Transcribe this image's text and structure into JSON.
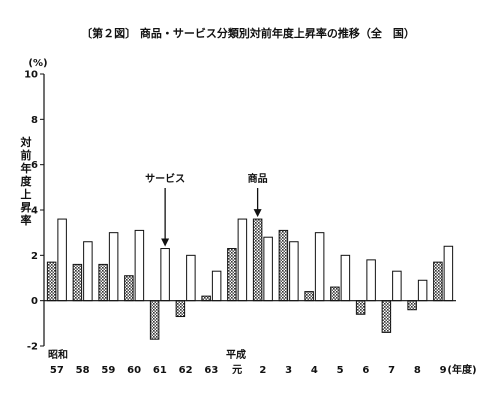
{
  "chart_data": {
    "type": "bar",
    "title": "〔第２図〕 商品・サービス分類別対前年度上昇率の推移（全　国）",
    "y_unit": "(%)",
    "ylabel": "対前年度上昇率",
    "ylim": [
      -2,
      10
    ],
    "yticks": [
      "-2",
      "0",
      "2",
      "4",
      "6",
      "8",
      "10"
    ],
    "era_labels": [
      "昭和",
      "平成"
    ],
    "x_unit": "(年度)",
    "categories": [
      "57",
      "58",
      "59",
      "60",
      "61",
      "62",
      "63",
      "元",
      "2",
      "3",
      "4",
      "5",
      "6",
      "7",
      "8",
      "9"
    ],
    "series": [
      {
        "name": "商品",
        "values": [
          1.7,
          1.6,
          1.6,
          1.1,
          -1.7,
          -0.7,
          0.2,
          2.3,
          3.6,
          3.1,
          0.4,
          0.6,
          -0.6,
          -1.4,
          -0.4,
          1.7
        ]
      },
      {
        "name": "サービス",
        "values": [
          3.6,
          2.6,
          3.0,
          3.1,
          2.3,
          2.0,
          1.3,
          3.6,
          2.8,
          2.6,
          3.0,
          2.0,
          1.8,
          1.3,
          0.9,
          2.4
        ]
      }
    ],
    "annotations": [
      {
        "text": "サービス",
        "series": 1,
        "category": 4
      },
      {
        "text": "商品",
        "series": 0,
        "category": 8
      }
    ],
    "colors": {
      "goods_fill": "#777777",
      "service_fill": "#ffffff",
      "stroke": "#111111"
    },
    "grid": false
  }
}
